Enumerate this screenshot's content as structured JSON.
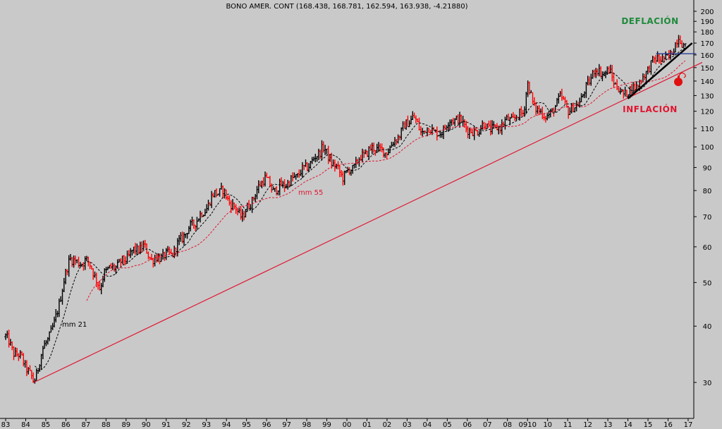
{
  "chart_data": {
    "type": "bar",
    "subtype": "ohlc-log",
    "title": "BONO AMER. CONT (168.438, 168.781, 162.594, 163.938, -4.21880)",
    "x_tick_labels": [
      "83",
      "84",
      "85",
      "86",
      "87",
      "88",
      "89",
      "90",
      "91",
      "92",
      "93",
      "94",
      "95",
      "96",
      "97",
      "98",
      "99",
      "00",
      "01",
      "02",
      "03",
      "04",
      "05",
      "06",
      "07",
      "08",
      "0910",
      "10",
      "11",
      "12",
      "13",
      "14",
      "15",
      "16",
      "17"
    ],
    "y_scale": "log",
    "ylim": [
      27,
      205
    ],
    "y_ticks": [
      30,
      40,
      50,
      60,
      70,
      80,
      90,
      100,
      110,
      120,
      130,
      140,
      150,
      160,
      170,
      180,
      190,
      200
    ],
    "y_tick_labels": [
      "30",
      "40",
      "50",
      "60",
      "70",
      "80",
      "90",
      "100",
      "110",
      "120",
      "130",
      "140",
      "150",
      "160",
      "170",
      "180",
      "190",
      "200"
    ],
    "anchors": [
      {
        "t": 1983.0,
        "v": 38
      },
      {
        "t": 1983.4,
        "v": 35
      },
      {
        "t": 1983.8,
        "v": 34
      },
      {
        "t": 1984.4,
        "v": 30
      },
      {
        "t": 1984.9,
        "v": 36
      },
      {
        "t": 1985.4,
        "v": 40
      },
      {
        "t": 1985.9,
        "v": 50
      },
      {
        "t": 1986.2,
        "v": 57
      },
      {
        "t": 1986.6,
        "v": 55
      },
      {
        "t": 1987.0,
        "v": 56
      },
      {
        "t": 1987.3,
        "v": 54
      },
      {
        "t": 1987.7,
        "v": 48
      },
      {
        "t": 1987.9,
        "v": 53
      },
      {
        "t": 1988.4,
        "v": 54
      },
      {
        "t": 1988.9,
        "v": 56
      },
      {
        "t": 1989.4,
        "v": 59
      },
      {
        "t": 1989.9,
        "v": 60
      },
      {
        "t": 1990.3,
        "v": 56
      },
      {
        "t": 1990.7,
        "v": 57
      },
      {
        "t": 1991.3,
        "v": 58
      },
      {
        "t": 1991.9,
        "v": 64
      },
      {
        "t": 1992.4,
        "v": 68
      },
      {
        "t": 1992.9,
        "v": 72
      },
      {
        "t": 1993.4,
        "v": 79
      },
      {
        "t": 1993.8,
        "v": 80
      },
      {
        "t": 1994.3,
        "v": 74
      },
      {
        "t": 1994.8,
        "v": 70
      },
      {
        "t": 1995.4,
        "v": 78
      },
      {
        "t": 1995.9,
        "v": 86
      },
      {
        "t": 1996.3,
        "v": 80
      },
      {
        "t": 1996.8,
        "v": 82
      },
      {
        "t": 1997.2,
        "v": 84
      },
      {
        "t": 1997.7,
        "v": 88
      },
      {
        "t": 1998.3,
        "v": 93
      },
      {
        "t": 1998.8,
        "v": 100
      },
      {
        "t": 1999.2,
        "v": 93
      },
      {
        "t": 1999.8,
        "v": 86
      },
      {
        "t": 2000.3,
        "v": 90
      },
      {
        "t": 2000.8,
        "v": 96
      },
      {
        "t": 2001.4,
        "v": 100
      },
      {
        "t": 2001.9,
        "v": 97
      },
      {
        "t": 2002.4,
        "v": 103
      },
      {
        "t": 2002.8,
        "v": 110
      },
      {
        "t": 2003.3,
        "v": 117
      },
      {
        "t": 2003.7,
        "v": 108
      },
      {
        "t": 2004.2,
        "v": 110
      },
      {
        "t": 2004.6,
        "v": 106
      },
      {
        "t": 2005.0,
        "v": 113
      },
      {
        "t": 2005.5,
        "v": 116
      },
      {
        "t": 2006.0,
        "v": 110
      },
      {
        "t": 2006.3,
        "v": 107
      },
      {
        "t": 2006.8,
        "v": 112
      },
      {
        "t": 2007.4,
        "v": 109
      },
      {
        "t": 2007.9,
        "v": 114
      },
      {
        "t": 2008.4,
        "v": 116
      },
      {
        "t": 2008.8,
        "v": 120
      },
      {
        "t": 2009.0,
        "v": 138
      },
      {
        "t": 2009.3,
        "v": 124
      },
      {
        "t": 2009.7,
        "v": 118
      },
      {
        "t": 2010.2,
        "v": 118
      },
      {
        "t": 2010.6,
        "v": 130
      },
      {
        "t": 2011.0,
        "v": 121
      },
      {
        "t": 2011.4,
        "v": 122
      },
      {
        "t": 2011.9,
        "v": 134
      },
      {
        "t": 2012.3,
        "v": 148
      },
      {
        "t": 2012.8,
        "v": 146
      },
      {
        "t": 2013.1,
        "v": 147
      },
      {
        "t": 2013.4,
        "v": 137
      },
      {
        "t": 2013.7,
        "v": 131
      },
      {
        "t": 2014.2,
        "v": 134
      },
      {
        "t": 2014.7,
        "v": 141
      },
      {
        "t": 2015.1,
        "v": 152
      },
      {
        "t": 2015.5,
        "v": 158
      },
      {
        "t": 2015.9,
        "v": 156
      },
      {
        "t": 2016.3,
        "v": 166
      },
      {
        "t": 2016.55,
        "v": 176
      },
      {
        "t": 2016.85,
        "v": 166
      }
    ],
    "lines": {
      "inflation_trend": {
        "from": {
          "t": 1984.4,
          "v": 30
        },
        "to": {
          "t": 2017.7,
          "v": 154
        }
      },
      "support_uptrend": {
        "from": {
          "t": 2014.0,
          "v": 128
        },
        "to": {
          "t": 2017.2,
          "v": 170
        }
      },
      "horizontal_level": {
        "t_from": 2015.4,
        "t_to": 2017.4,
        "v": 161
      }
    },
    "colors": {
      "up": "#000000",
      "down": "#ff0000",
      "ma21": "#000000",
      "ma55": "#e01530",
      "trend": "#e01530",
      "support": "#000000",
      "level": "#1c2f8f",
      "background": "#c9c9c9"
    }
  },
  "annotations": {
    "deflation": "DEFLACIÓN",
    "inflation": "INFLACIÓN",
    "mm21": "mm 21",
    "mm55": "mm 55"
  }
}
